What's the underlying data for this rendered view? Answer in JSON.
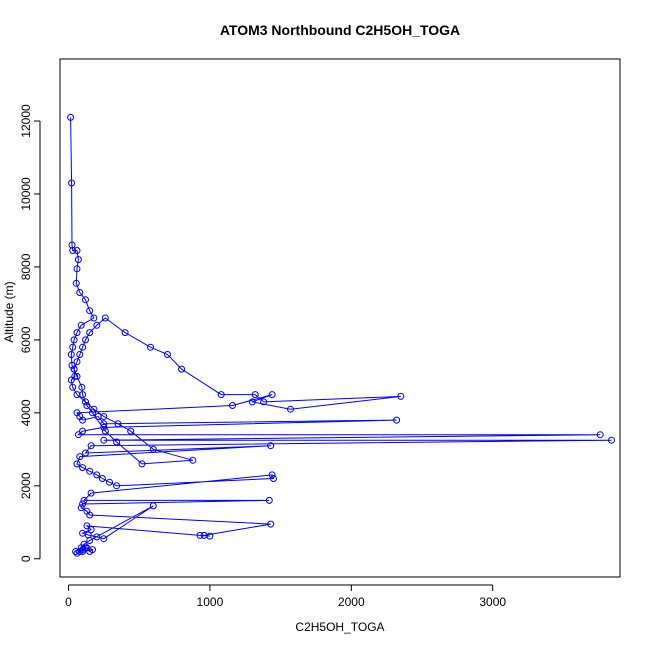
{
  "chart_data": {
    "type": "line",
    "title": "ATOM3 Northbound C2H5OH_TOGA",
    "xlabel": "C2H5OH_TOGA",
    "ylabel": "Altitude (m)",
    "xlim": [
      -60,
      3900
    ],
    "ylim": [
      -500,
      13700
    ],
    "x_ticks": [
      0,
      1000,
      2000,
      3000
    ],
    "x_tick_labels": [
      "0",
      "1000",
      "2000",
      "3000"
    ],
    "y_ticks": [
      0,
      2000,
      4000,
      6000,
      8000,
      10000,
      12000
    ],
    "y_tick_labels": [
      "0",
      "2000",
      "4000",
      "6000",
      "8000",
      "10000",
      "12000"
    ],
    "grid": false,
    "legend": "none",
    "series": [
      {
        "color": "#0000ff",
        "marker": "open-circle",
        "x": [
          15,
          22,
          25,
          30,
          60,
          70,
          60,
          55,
          80,
          120,
          150,
          180,
          90,
          60,
          40,
          30,
          20,
          25,
          40,
          45,
          20,
          30,
          60,
          120,
          180,
          250,
          350,
          440,
          600,
          880,
          520,
          340,
          260,
          170,
          130,
          100,
          95,
          60,
          40,
          60,
          80,
          100,
          120,
          150,
          200,
          260,
          400,
          580,
          700,
          800,
          1080,
          1320,
          1380,
          2350,
          1570,
          1300,
          1440,
          1160,
          60,
          80,
          100,
          210,
          250,
          2320,
          250,
          100,
          70,
          3760,
          250,
          3840,
          160,
          120,
          1430,
          80,
          60,
          100,
          150,
          200,
          240,
          290,
          340,
          1450,
          1440,
          160,
          110,
          1420,
          100,
          90,
          130,
          150,
          1430,
          960,
          1000,
          930,
          130,
          160,
          100,
          140,
          200,
          250,
          600,
          150,
          110,
          90,
          80,
          100,
          120,
          150,
          170,
          130,
          100,
          60,
          50
        ],
        "y": [
          12100,
          10300,
          8600,
          8450,
          8450,
          8200,
          7950,
          7550,
          7300,
          7100,
          6800,
          6600,
          6400,
          6200,
          6000,
          5800,
          5600,
          5300,
          5200,
          5000,
          4900,
          4700,
          4500,
          4300,
          4100,
          3900,
          3700,
          3500,
          3000,
          2700,
          2600,
          3200,
          3500,
          4000,
          4200,
          4500,
          4700,
          5000,
          5200,
          5400,
          5600,
          5800,
          6000,
          6200,
          6400,
          6600,
          6200,
          5800,
          5600,
          5200,
          4500,
          4500,
          4300,
          4450,
          4100,
          4300,
          4500,
          4200,
          4000,
          3900,
          3800,
          3900,
          3700,
          3800,
          3600,
          3500,
          3400,
          3400,
          3250,
          3250,
          3100,
          2900,
          3100,
          2800,
          2600,
          2500,
          2400,
          2300,
          2200,
          2100,
          2000,
          2200,
          2300,
          1800,
          1600,
          1600,
          1500,
          1400,
          1300,
          1200,
          950,
          640,
          620,
          640,
          900,
          800,
          700,
          650,
          600,
          550,
          1450,
          500,
          400,
          300,
          200,
          250,
          300,
          200,
          250,
          300,
          200,
          150,
          200
        ]
      }
    ]
  }
}
